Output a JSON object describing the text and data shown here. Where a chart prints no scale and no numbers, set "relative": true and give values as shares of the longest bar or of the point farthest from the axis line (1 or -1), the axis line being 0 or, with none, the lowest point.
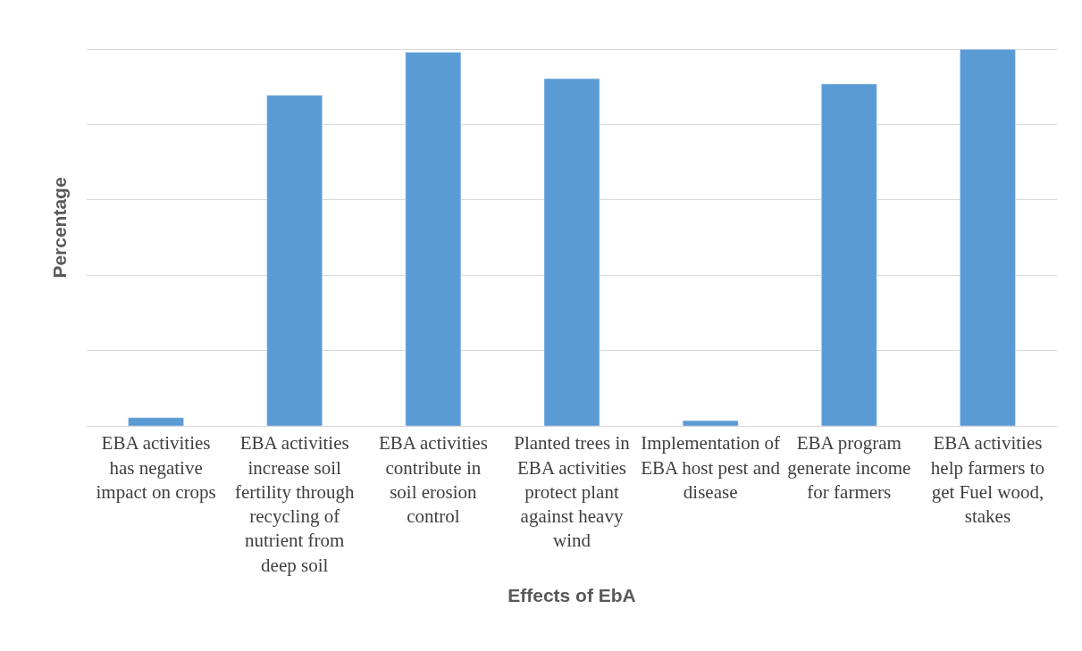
{
  "chart_data": {
    "type": "bar",
    "xlabel": "Effects of EbA",
    "ylabel": "Percentage",
    "relative": true,
    "grid": "y",
    "color": "#5b9bd5",
    "categories": [
      "EBA activities has negative impact on crops",
      "EBA activities increase soil fertility through recycling of nutrient from deep soil",
      "EBA activities contribute in soil erosion control",
      "Planted trees in EBA activities protect plant against heavy wind",
      "Implementation of EBA host pest and disease",
      "EBA program generate income for farmers",
      "EBA activities help farmers to get Fuel wood, stakes"
    ],
    "values": [
      0.022,
      0.878,
      0.992,
      0.922,
      0.014,
      0.908,
      1
    ]
  }
}
